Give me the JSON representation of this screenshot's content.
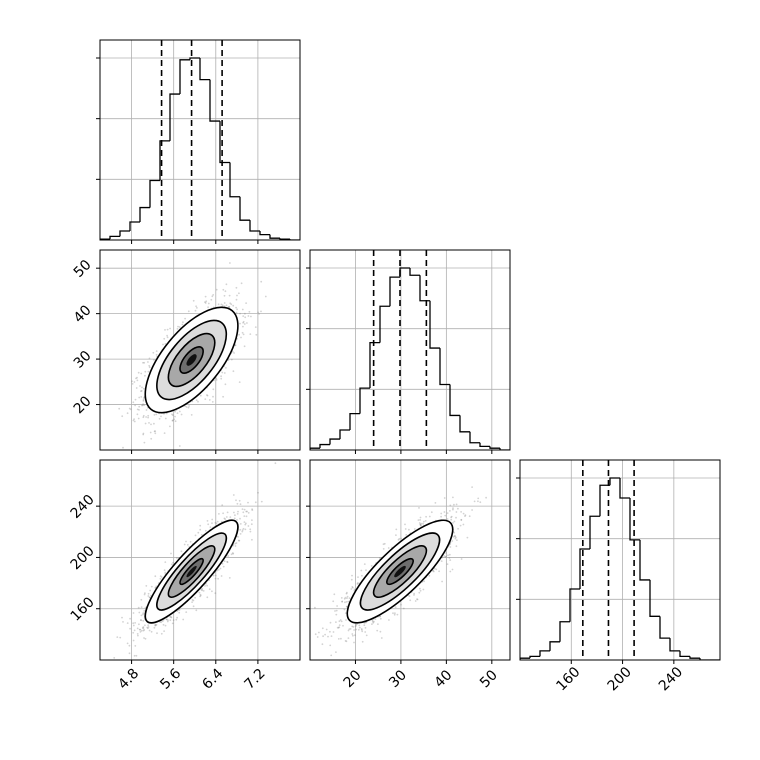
{
  "chart_data": {
    "type": "corner",
    "title": "",
    "grid": true,
    "colors": {
      "line": "#000000",
      "grid": "#b0b0b0",
      "scatter": "#808080",
      "background": "#ffffff"
    },
    "parameters": [
      {
        "name": "",
        "ticks": [
          4.8,
          5.6,
          6.4,
          7.2
        ],
        "tick_labels": [
          "4.8",
          "5.6",
          "6.4",
          "7.2"
        ],
        "range": [
          4.2,
          8.0
        ]
      },
      {
        "name": "",
        "ticks": [
          20,
          30,
          40,
          50
        ],
        "tick_labels": [
          "20",
          "30",
          "40",
          "50"
        ],
        "range": [
          10.0,
          54.0
        ]
      },
      {
        "name": "",
        "ticks": [
          160,
          200,
          240
        ],
        "tick_labels": [
          "160",
          "200",
          "240"
        ],
        "range": [
          120.0,
          276.0
        ]
      }
    ],
    "histograms": [
      {
        "bin_edges": [
          4.2,
          4.39,
          4.58,
          4.77,
          4.96,
          5.15,
          5.34,
          5.53,
          5.72,
          5.91,
          6.1,
          6.29,
          6.48,
          6.67,
          6.86,
          7.05,
          7.24,
          7.43,
          7.62,
          7.81,
          8.0
        ],
        "counts": [
          0.5,
          2,
          5,
          10,
          18,
          33,
          55,
          81,
          100,
          101,
          89,
          66,
          43,
          24,
          11,
          5,
          3,
          1,
          0.5,
          0
        ],
        "quantiles": [
          5.37,
          5.94,
          6.52
        ]
      },
      {
        "bin_edges": [
          10.0,
          12.2,
          14.4,
          16.6,
          18.8,
          21.0,
          23.2,
          25.4,
          27.6,
          29.8,
          32.0,
          34.2,
          36.4,
          38.6,
          40.8,
          43.0,
          45.2,
          47.4,
          49.6,
          51.8,
          54.0
        ],
        "counts": [
          1,
          3,
          6,
          11,
          20,
          34,
          59,
          79,
          95,
          100,
          96,
          82,
          56,
          36,
          19,
          10,
          4,
          2,
          1,
          0
        ],
        "quantiles": [
          24.0,
          29.8,
          35.6
        ]
      },
      {
        "bin_edges": [
          120,
          127.8,
          135.6,
          143.4,
          151.2,
          159.0,
          166.8,
          174.6,
          182.4,
          190.2,
          198.0,
          205.8,
          213.6,
          221.4,
          229.2,
          237.0,
          244.8,
          252.6,
          260.4,
          268.2,
          276.0
        ],
        "counts": [
          1,
          2,
          5,
          10,
          21,
          39,
          61,
          79,
          96,
          100,
          89,
          66,
          44,
          24,
          12,
          5,
          2,
          1,
          0,
          0
        ],
        "quantiles": [
          169.0,
          189.0,
          209.0
        ]
      }
    ],
    "pairs": [
      {
        "x": 0,
        "y": 1,
        "mean": [
          5.94,
          29.8
        ],
        "sd": [
          0.44,
          5.8
        ],
        "rho": 0.65
      },
      {
        "x": 0,
        "y": 2,
        "mean": [
          5.94,
          189.0
        ],
        "sd": [
          0.44,
          20.0
        ],
        "rho": 0.87
      },
      {
        "x": 1,
        "y": 2,
        "mean": [
          29.8,
          189.0
        ],
        "sd": [
          5.8,
          20.0
        ],
        "rho": 0.82
      }
    ],
    "contour_sigmas": [
      0.5,
      1.0,
      1.5,
      2.0
    ],
    "samples_per_panel": 1800
  }
}
